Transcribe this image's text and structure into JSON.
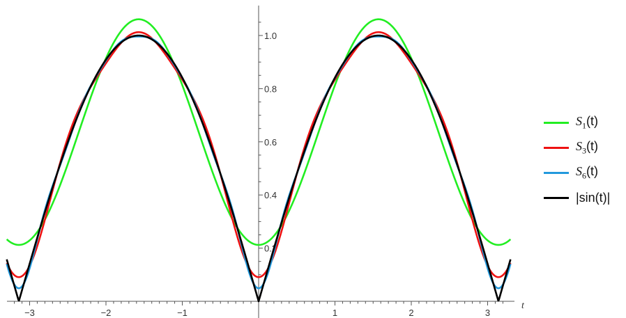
{
  "chart_data": {
    "type": "line",
    "xlabel": "t",
    "ylabel": "",
    "xlim": [
      -3.3,
      3.3
    ],
    "ylim": [
      0,
      1.1
    ],
    "x_ticks": [
      -3,
      -2,
      -1,
      1,
      2,
      3
    ],
    "x_tick_labels": [
      "−3",
      "−2",
      "−1",
      "1",
      "2",
      "3"
    ],
    "y_ticks": [
      0.2,
      0.4,
      0.6,
      0.8,
      1.0
    ],
    "y_tick_labels": [
      "0.2",
      "0.4",
      "0.6",
      "0.8",
      "1.0"
    ],
    "grid": false,
    "legend_position": "right",
    "series": [
      {
        "name": "S1(t)",
        "legend_symbol": "S",
        "legend_sub": "1",
        "legend_suffix": "(t)",
        "color": "#22ee22",
        "terms": 1
      },
      {
        "name": "S3(t)",
        "legend_symbol": "S",
        "legend_sub": "3",
        "legend_suffix": "(t)",
        "color": "#ee1111",
        "terms": 3
      },
      {
        "name": "S6(t)",
        "legend_symbol": "S",
        "legend_sub": "6",
        "legend_suffix": "(t)",
        "color": "#2299dd",
        "terms": 6
      },
      {
        "name": "|sin(t)|",
        "legend_symbol": "",
        "legend_sub": "",
        "legend_suffix": "|sin(t)|",
        "color": "#000000",
        "terms": 0
      }
    ]
  }
}
